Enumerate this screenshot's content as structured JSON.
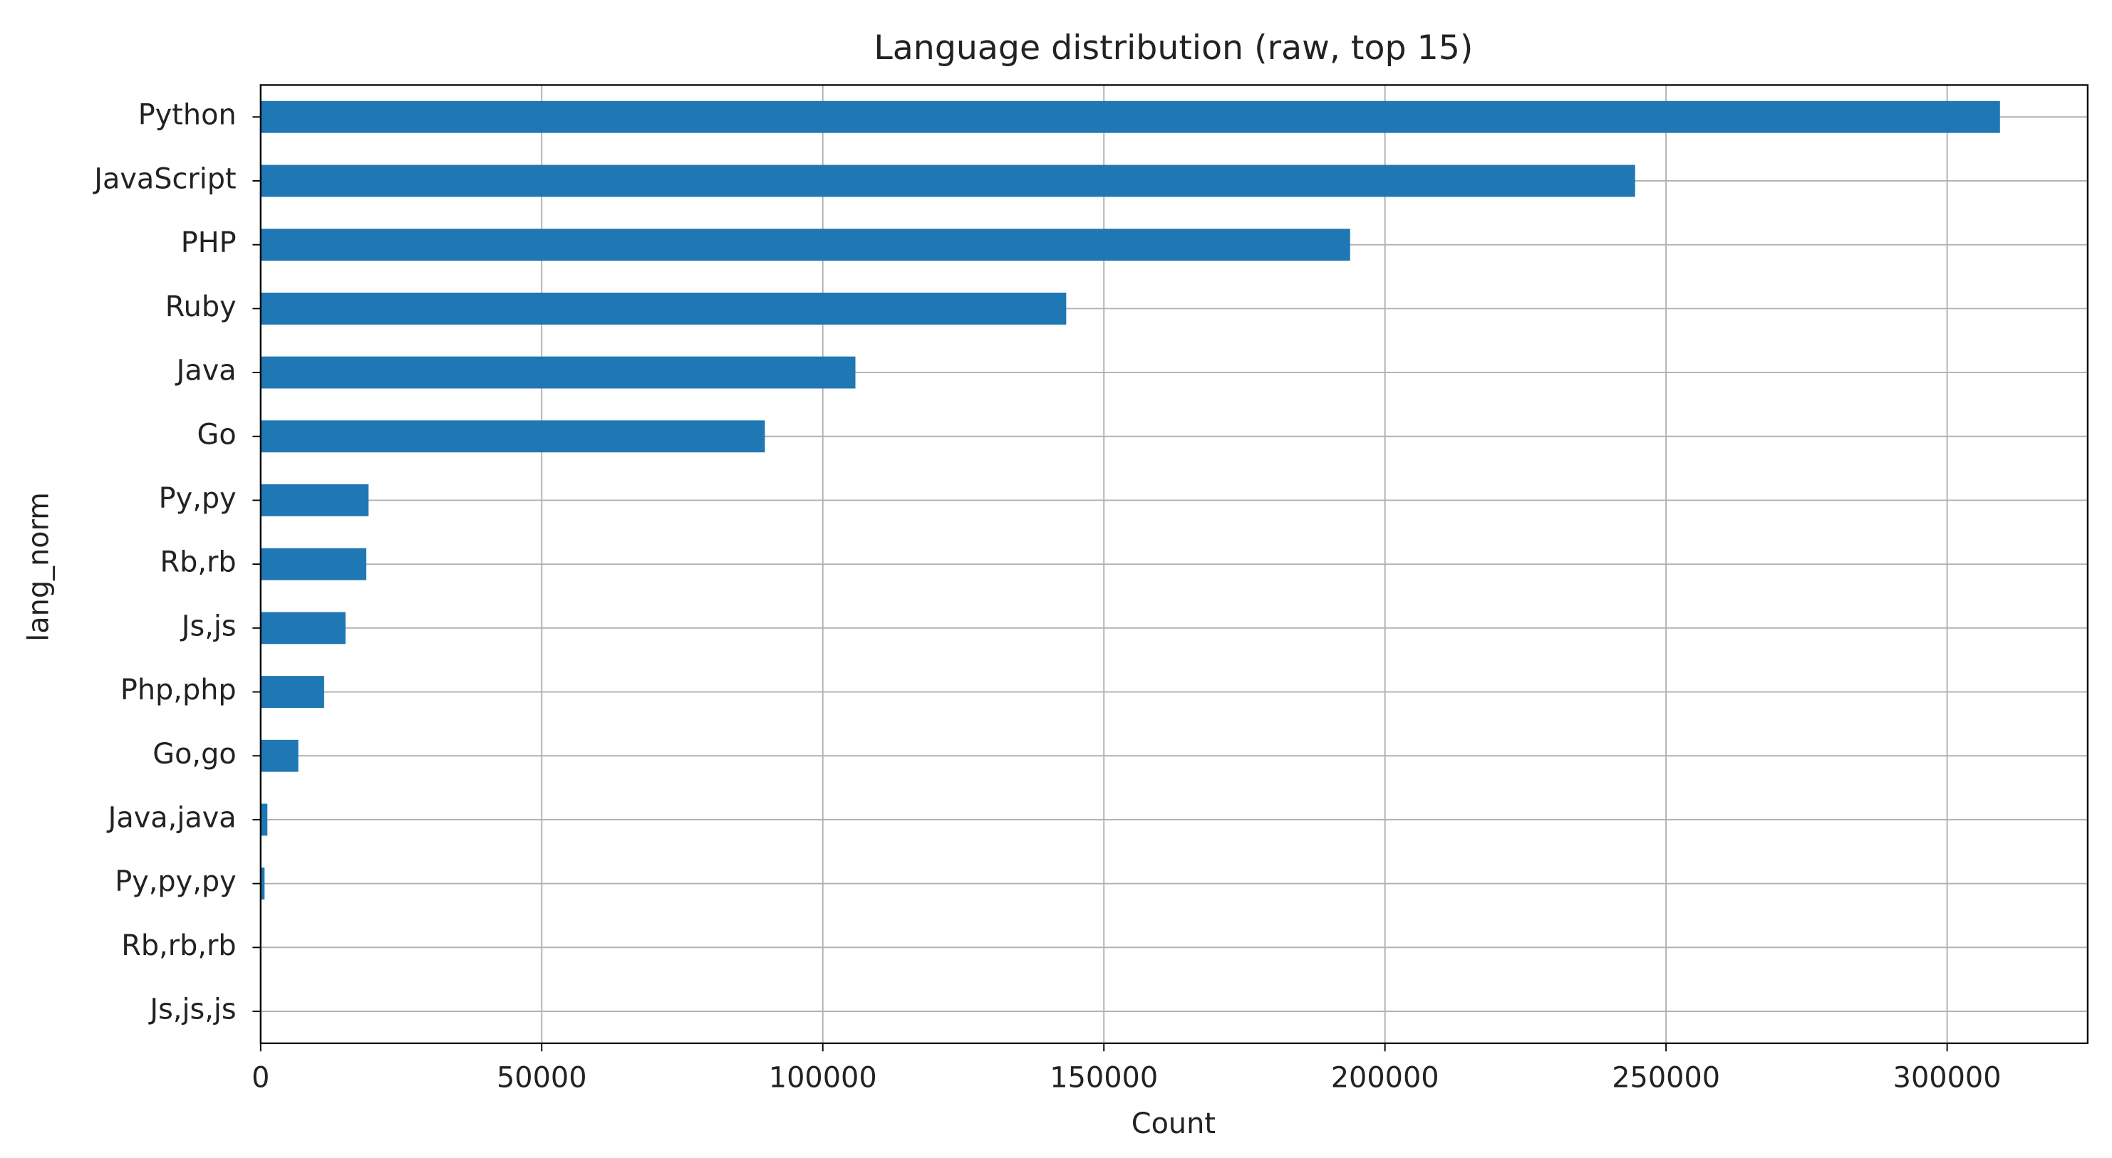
{
  "chart_data": {
    "type": "bar",
    "orientation": "horizontal",
    "title": "Language distribution (raw, top 15)",
    "x_label": "Count",
    "y_label": "lang_norm",
    "categories": [
      "Python",
      "JavaScript",
      "PHP",
      "Ruby",
      "Java",
      "Go",
      "Py,py",
      "Rb,rb",
      "Js,js",
      "Php,php",
      "Go,go",
      "Java,java",
      "Py,py,py",
      "Rb,rb,rb",
      "Js,js,js"
    ],
    "values": [
      309400,
      244500,
      193800,
      143300,
      105800,
      89700,
      19200,
      18800,
      15100,
      11300,
      6700,
      1200,
      700,
      50,
      30
    ],
    "color": "#1f77b4",
    "xlim": [
      0,
      325000
    ],
    "xticks": [
      0,
      50000,
      100000,
      150000,
      200000,
      250000,
      300000
    ],
    "grid": true
  }
}
